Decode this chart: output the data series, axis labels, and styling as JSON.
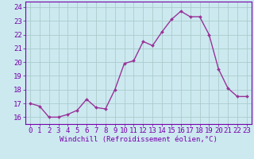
{
  "x": [
    0,
    1,
    2,
    3,
    4,
    5,
    6,
    7,
    8,
    9,
    10,
    11,
    12,
    13,
    14,
    15,
    16,
    17,
    18,
    19,
    20,
    21,
    22,
    23
  ],
  "y": [
    17.0,
    16.8,
    16.0,
    16.0,
    16.2,
    16.5,
    17.3,
    16.7,
    16.6,
    18.0,
    19.9,
    20.1,
    21.5,
    21.2,
    22.2,
    23.1,
    23.7,
    23.3,
    23.3,
    22.0,
    19.5,
    18.1,
    17.5,
    17.5
  ],
  "line_color": "#993399",
  "marker": "D",
  "marker_size": 2.0,
  "bg_color": "#cce9f0",
  "grid_color": "#aacccc",
  "xlabel": "Windchill (Refroidissement éolien,°C)",
  "ylim": [
    15.5,
    24.4
  ],
  "xlim": [
    -0.5,
    23.5
  ],
  "yticks": [
    16,
    17,
    18,
    19,
    20,
    21,
    22,
    23,
    24
  ],
  "xticks": [
    0,
    1,
    2,
    3,
    4,
    5,
    6,
    7,
    8,
    9,
    10,
    11,
    12,
    13,
    14,
    15,
    16,
    17,
    18,
    19,
    20,
    21,
    22,
    23
  ],
  "title_color": "#7700aa",
  "xlabel_fontsize": 6.5,
  "tick_fontsize": 6.5,
  "line_width": 1.0
}
